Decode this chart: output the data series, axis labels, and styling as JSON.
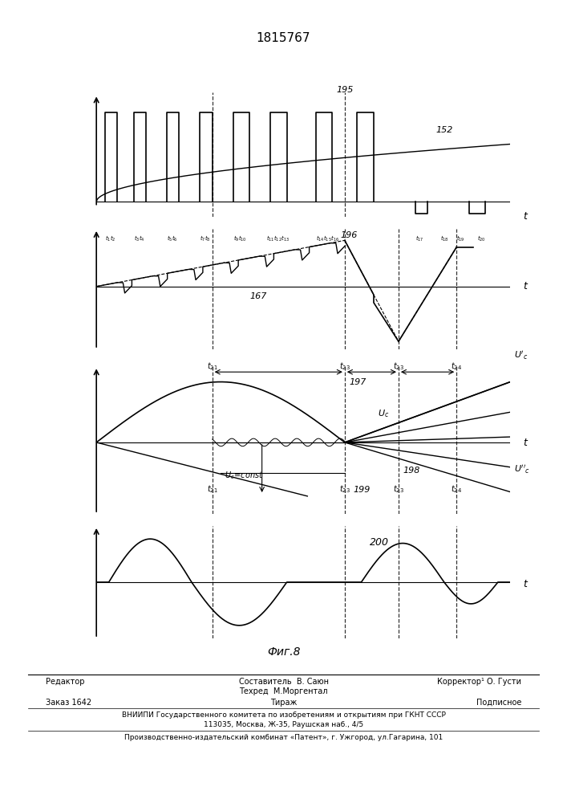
{
  "title": "1815767",
  "fig_label": "Фиг.8",
  "background_color": "#ffffff",
  "footer_left": "Редактор",
  "footer_center1": "Составитель  В. Саюн",
  "footer_center2": "Техред  М.Моргентал",
  "footer_right": "Корректор¹ О. Густи",
  "footer_order": "Заказ 1642",
  "footer_tirazh": "Тираж",
  "footer_podpisnoe": "Подписное",
  "footer_vniip": "ВНИИПИ Государственного комитета по изобретениям и открытиям при ГКНТ СССР",
  "footer_address": "113035, Москва, Ж-35, Раушская наб., 4/5",
  "footer_proizv": "Производственно-издательский комбинат «Патент», г. Ужгород, ул.Гагарина, 101"
}
